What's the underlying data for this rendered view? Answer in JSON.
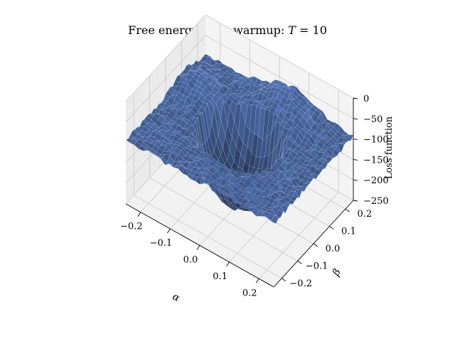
{
  "chart_data": {
    "type": "surface3d",
    "title": {
      "prefix": "Free energy after warmup: ",
      "var": "T",
      "suffix": " = 10"
    },
    "xlabel": "α",
    "ylabel": "β",
    "zlabel": "Loss function",
    "xticks": [
      "−0.2",
      "−0.1",
      "0.0",
      "0.1",
      "0.2"
    ],
    "yticks": [
      "−0.2",
      "−0.1",
      "0.0",
      "0.1",
      "0.2"
    ],
    "zticks": [
      "0",
      "−50",
      "−100",
      "−150",
      "−200",
      "−250"
    ],
    "x_tick_values": [
      -0.2,
      -0.1,
      0.0,
      0.1,
      0.2
    ],
    "y_tick_values": [
      -0.2,
      -0.1,
      0.0,
      0.1,
      0.2
    ],
    "z_tick_values": [
      0,
      -50,
      -100,
      -150,
      -200,
      -250
    ],
    "xlim": [
      -0.25,
      0.25
    ],
    "ylim": [
      -0.25,
      0.25
    ],
    "zlim": [
      -250,
      0
    ],
    "surface": {
      "plateau_value": -95,
      "basin_minimum": -255,
      "basin_center": [
        0.0,
        0.0
      ],
      "basin_radius": 0.13,
      "noise_amplitude": 6
    },
    "grid": true,
    "surface_color": "#4a6aa8",
    "pane_color": "#f2f2f2"
  }
}
